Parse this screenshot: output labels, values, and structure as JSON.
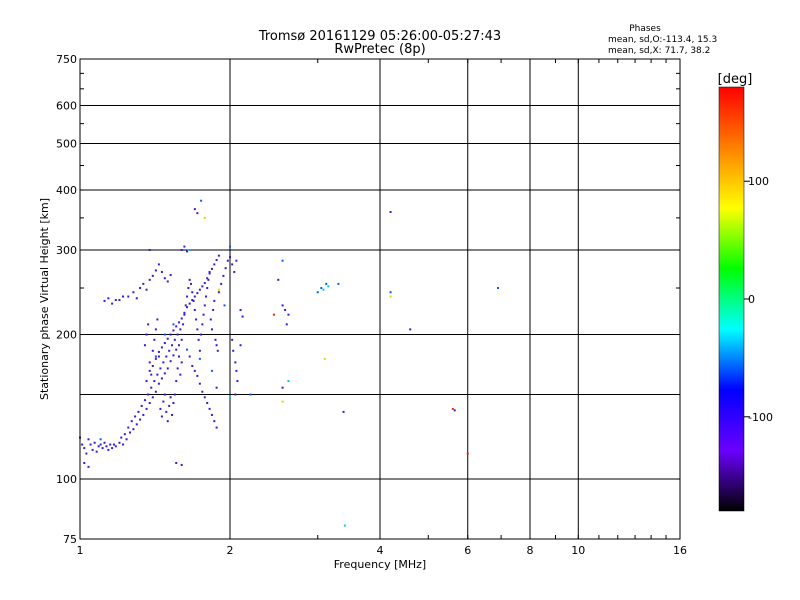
{
  "chart_data": {
    "type": "scatter",
    "title": "Tromsø 20161129 05:26:00-05:27:43",
    "subtitle": "RwPretec (8p)",
    "xlabel": "Frequency [MHz]",
    "ylabel": "Stationary phase Virtual Height [km]",
    "xscale": "log",
    "yscale": "log",
    "xlim": [
      1,
      16
    ],
    "ylim": [
      75,
      750
    ],
    "x_ticks": [
      1,
      2,
      4,
      6,
      8,
      10,
      16
    ],
    "y_ticks": [
      75,
      100,
      200,
      300,
      400,
      500,
      600,
      750
    ],
    "x_grid": [
      2,
      4,
      6,
      8,
      10
    ],
    "y_grid": [
      100,
      150,
      200,
      300,
      400,
      500,
      600
    ],
    "grid": true,
    "legend": {
      "title": "Phases",
      "lines": [
        "mean, sd,O:-113.4, 15.3",
        "mean, sd,X: 71.7, 38.2"
      ],
      "placement": "top-right"
    },
    "colorbar": {
      "label": "[deg]",
      "range": [
        -180,
        180
      ],
      "ticks": [
        100,
        0,
        -100
      ],
      "colors": [
        "#ff0000",
        "#ff8000",
        "#ffff00",
        "#00ff00",
        "#00ffff",
        "#0000ff",
        "#6a00ff",
        "#000000"
      ]
    },
    "series": [
      {
        "color": "#3a1ad6",
        "points": [
          [
            1.0,
            122
          ],
          [
            1.01,
            118
          ],
          [
            1.02,
            116
          ],
          [
            1.03,
            113
          ],
          [
            1.04,
            121
          ],
          [
            1.05,
            118
          ],
          [
            1.06,
            115
          ],
          [
            1.07,
            119
          ],
          [
            1.08,
            114
          ],
          [
            1.09,
            117
          ],
          [
            1.1,
            118
          ],
          [
            1.11,
            116
          ],
          [
            1.12,
            119
          ],
          [
            1.13,
            117
          ],
          [
            1.14,
            115
          ],
          [
            1.15,
            118
          ],
          [
            1.16,
            116
          ],
          [
            1.17,
            118
          ],
          [
            1.18,
            117
          ],
          [
            1.2,
            119
          ],
          [
            1.21,
            122
          ],
          [
            1.22,
            118
          ],
          [
            1.23,
            124
          ],
          [
            1.24,
            121
          ],
          [
            1.25,
            128
          ],
          [
            1.26,
            125
          ],
          [
            1.27,
            132
          ],
          [
            1.28,
            127
          ],
          [
            1.29,
            135
          ],
          [
            1.3,
            130
          ],
          [
            1.31,
            138
          ],
          [
            1.32,
            133
          ],
          [
            1.33,
            142
          ],
          [
            1.34,
            136
          ],
          [
            1.35,
            146
          ],
          [
            1.36,
            140
          ],
          [
            1.37,
            150
          ],
          [
            1.38,
            144
          ],
          [
            1.39,
            155
          ],
          [
            1.4,
            148
          ],
          [
            1.41,
            160
          ],
          [
            1.42,
            152
          ],
          [
            1.43,
            165
          ],
          [
            1.44,
            158
          ],
          [
            1.45,
            170
          ],
          [
            1.46,
            162
          ],
          [
            1.47,
            175
          ],
          [
            1.48,
            166
          ],
          [
            1.49,
            180
          ],
          [
            1.5,
            170
          ],
          [
            1.51,
            185
          ],
          [
            1.52,
            176
          ],
          [
            1.53,
            190
          ],
          [
            1.54,
            181
          ],
          [
            1.55,
            195
          ],
          [
            1.56,
            186
          ],
          [
            1.57,
            200
          ],
          [
            1.58,
            190
          ],
          [
            1.59,
            205
          ],
          [
            1.6,
            195
          ],
          [
            1.35,
            190
          ],
          [
            1.36,
            200
          ],
          [
            1.37,
            210
          ],
          [
            1.38,
            175
          ],
          [
            1.39,
            165
          ],
          [
            1.4,
            185
          ],
          [
            1.41,
            195
          ],
          [
            1.42,
            205
          ],
          [
            1.43,
            215
          ],
          [
            1.44,
            180
          ],
          [
            1.45,
            140
          ],
          [
            1.46,
            135
          ],
          [
            1.47,
            145
          ],
          [
            1.48,
            150
          ],
          [
            1.49,
            138
          ],
          [
            1.5,
            132
          ],
          [
            1.51,
            142
          ],
          [
            1.52,
            148
          ],
          [
            1.53,
            136
          ],
          [
            1.54,
            144
          ],
          [
            1.55,
            150
          ],
          [
            1.56,
            160
          ],
          [
            1.57,
            170
          ],
          [
            1.58,
            180
          ],
          [
            1.59,
            165
          ],
          [
            1.6,
            175
          ],
          [
            1.61,
            210
          ],
          [
            1.62,
            220
          ],
          [
            1.63,
            230
          ],
          [
            1.64,
            240
          ],
          [
            1.65,
            250
          ],
          [
            1.66,
            260
          ],
          [
            1.67,
            255
          ],
          [
            1.68,
            245
          ],
          [
            1.69,
            235
          ],
          [
            1.7,
            225
          ],
          [
            1.71,
            215
          ],
          [
            1.72,
            205
          ],
          [
            1.73,
            195
          ],
          [
            1.74,
            185
          ],
          [
            1.75,
            200
          ],
          [
            1.76,
            210
          ],
          [
            1.77,
            220
          ],
          [
            1.78,
            230
          ],
          [
            1.79,
            240
          ],
          [
            1.8,
            250
          ],
          [
            1.81,
            260
          ],
          [
            1.82,
            270
          ],
          [
            1.83,
            215
          ],
          [
            1.84,
            205
          ],
          [
            1.85,
            225
          ],
          [
            1.86,
            235
          ],
          [
            1.87,
            195
          ],
          [
            1.88,
            190
          ],
          [
            1.89,
            185
          ],
          [
            1.9,
            245
          ],
          [
            1.92,
            255
          ],
          [
            1.94,
            265
          ],
          [
            1.96,
            275
          ],
          [
            1.98,
            285
          ],
          [
            2.0,
            290
          ],
          [
            2.02,
            280
          ],
          [
            2.04,
            270
          ],
          [
            2.06,
            285
          ],
          [
            2.02,
            195
          ],
          [
            2.03,
            185
          ],
          [
            2.05,
            175
          ],
          [
            2.06,
            168
          ],
          [
            2.07,
            160
          ],
          [
            2.1,
            190
          ],
          [
            1.25,
            240
          ],
          [
            1.28,
            245
          ],
          [
            1.3,
            238
          ],
          [
            1.32,
            250
          ],
          [
            1.34,
            255
          ],
          [
            1.36,
            248
          ],
          [
            1.38,
            260
          ],
          [
            1.4,
            265
          ],
          [
            1.42,
            272
          ],
          [
            1.44,
            280
          ],
          [
            1.46,
            270
          ],
          [
            1.48,
            262
          ],
          [
            1.5,
            258
          ],
          [
            1.52,
            266
          ],
          [
            1.12,
            235
          ],
          [
            1.14,
            238
          ],
          [
            1.16,
            232
          ],
          [
            1.18,
            236
          ],
          [
            1.2,
            236
          ],
          [
            1.22,
            240
          ],
          [
            1.6,
            300
          ],
          [
            1.62,
            305
          ],
          [
            1.64,
            298
          ],
          [
            1.7,
            365
          ],
          [
            1.72,
            358
          ],
          [
            1.38,
            300
          ],
          [
            1.56,
            108
          ],
          [
            1.6,
            107
          ],
          [
            1.02,
            108
          ],
          [
            1.04,
            106
          ],
          [
            1.36,
            160
          ],
          [
            1.38,
            168
          ],
          [
            1.4,
            172
          ],
          [
            1.42,
            178
          ],
          [
            1.44,
            184
          ],
          [
            1.46,
            188
          ],
          [
            1.48,
            192
          ],
          [
            1.5,
            196
          ],
          [
            1.52,
            200
          ],
          [
            1.54,
            204
          ],
          [
            1.56,
            208
          ],
          [
            1.58,
            212
          ],
          [
            1.6,
            216
          ],
          [
            1.62,
            222
          ],
          [
            1.64,
            228
          ],
          [
            1.66,
            232
          ],
          [
            1.68,
            236
          ],
          [
            1.7,
            240
          ],
          [
            1.72,
            244
          ],
          [
            1.74,
            248
          ],
          [
            1.76,
            252
          ],
          [
            1.78,
            256
          ],
          [
            1.8,
            262
          ],
          [
            1.82,
            268
          ],
          [
            1.84,
            274
          ],
          [
            1.86,
            280
          ],
          [
            1.88,
            286
          ],
          [
            1.9,
            292
          ],
          [
            1.66,
            180
          ],
          [
            1.68,
            172
          ],
          [
            1.7,
            168
          ],
          [
            1.72,
            164
          ],
          [
            1.74,
            158
          ],
          [
            1.76,
            152
          ],
          [
            1.78,
            148
          ],
          [
            1.8,
            144
          ],
          [
            1.82,
            140
          ],
          [
            1.84,
            136
          ],
          [
            1.86,
            132
          ],
          [
            1.88,
            128
          ],
          [
            2.55,
            230
          ],
          [
            2.58,
            225
          ],
          [
            2.6,
            210
          ],
          [
            2.62,
            220
          ],
          [
            2.1,
            225
          ],
          [
            2.12,
            218
          ],
          [
            2.5,
            260
          ],
          [
            4.2,
            360
          ],
          [
            3.38,
            138
          ],
          [
            5.65,
            139
          ],
          [
            4.6,
            205
          ],
          [
            2.05,
            150
          ],
          [
            2.55,
            155
          ],
          [
            1.88,
            155
          ]
        ]
      },
      {
        "color": "#0a5cff",
        "points": [
          [
            1.42,
            180
          ],
          [
            1.48,
            200
          ],
          [
            1.54,
            210
          ],
          [
            1.64,
            186
          ],
          [
            1.74,
            178
          ],
          [
            1.84,
            168
          ],
          [
            1.95,
            230
          ],
          [
            2.2,
            150
          ],
          [
            2.55,
            285
          ],
          [
            3.0,
            245
          ],
          [
            3.05,
            250
          ],
          [
            3.12,
            255
          ],
          [
            3.3,
            255
          ],
          [
            4.2,
            245
          ],
          [
            6.9,
            250
          ],
          [
            1.75,
            380
          ],
          [
            2.0,
            305
          ],
          [
            1.1,
            121
          ]
        ]
      },
      {
        "color": "#00c8ff",
        "points": [
          [
            1.65,
            300
          ],
          [
            3.08,
            248
          ],
          [
            3.15,
            252
          ],
          [
            3.4,
            80
          ],
          [
            2.62,
            160
          ],
          [
            2.0,
            148
          ]
        ]
      },
      {
        "color": "#e6d600",
        "points": [
          [
            1.78,
            350
          ],
          [
            3.1,
            178
          ],
          [
            2.55,
            145
          ],
          [
            1.9,
            248
          ],
          [
            4.2,
            240
          ]
        ]
      },
      {
        "color": "#ff2000",
        "points": [
          [
            2.45,
            220
          ],
          [
            5.6,
            140
          ],
          [
            6.0,
            113
          ]
        ]
      }
    ]
  }
}
